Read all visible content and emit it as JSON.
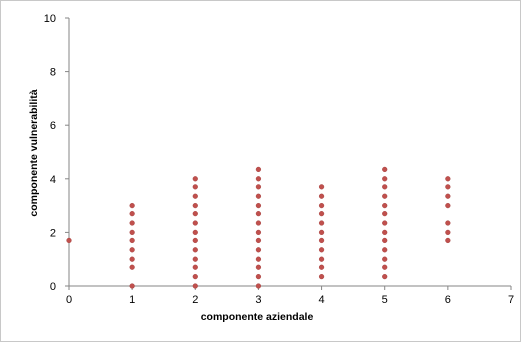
{
  "chart_data": {
    "type": "scatter",
    "title": "",
    "xlabel": "componente aziendale",
    "ylabel": "componente vulnerabilità",
    "xlim": [
      0,
      7
    ],
    "ylim": [
      0,
      10
    ],
    "x_ticks": [
      "0",
      "1",
      "2",
      "3",
      "4",
      "5",
      "6",
      "7"
    ],
    "y_ticks": [
      "0",
      "2",
      "4",
      "6",
      "8",
      "10"
    ],
    "grid": false,
    "legend": "none",
    "marker_color": "#C0504D",
    "axis_color": "#868686",
    "series": [
      {
        "points": [
          [
            0,
            1.7
          ],
          [
            1,
            0
          ],
          [
            1,
            0.7
          ],
          [
            1,
            1
          ],
          [
            1,
            1.35
          ],
          [
            1,
            1.7
          ],
          [
            1,
            2
          ],
          [
            1,
            2.35
          ],
          [
            1,
            2.7
          ],
          [
            1,
            3
          ],
          [
            2,
            0
          ],
          [
            2,
            0.35
          ],
          [
            2,
            0.7
          ],
          [
            2,
            1
          ],
          [
            2,
            1.35
          ],
          [
            2,
            1.7
          ],
          [
            2,
            2
          ],
          [
            2,
            2.35
          ],
          [
            2,
            2.7
          ],
          [
            2,
            3
          ],
          [
            2,
            3.35
          ],
          [
            2,
            3.7
          ],
          [
            2,
            4
          ],
          [
            3,
            0
          ],
          [
            3,
            0.35
          ],
          [
            3,
            0.7
          ],
          [
            3,
            1
          ],
          [
            3,
            1.35
          ],
          [
            3,
            1.7
          ],
          [
            3,
            2
          ],
          [
            3,
            2.35
          ],
          [
            3,
            2.7
          ],
          [
            3,
            3
          ],
          [
            3,
            3.35
          ],
          [
            3,
            3.7
          ],
          [
            3,
            4
          ],
          [
            3,
            4.35
          ],
          [
            4,
            0.35
          ],
          [
            4,
            0.7
          ],
          [
            4,
            1
          ],
          [
            4,
            1.35
          ],
          [
            4,
            1.7
          ],
          [
            4,
            2
          ],
          [
            4,
            2.35
          ],
          [
            4,
            2.7
          ],
          [
            4,
            3
          ],
          [
            4,
            3.35
          ],
          [
            4,
            3.7
          ],
          [
            5,
            0.35
          ],
          [
            5,
            0.7
          ],
          [
            5,
            1
          ],
          [
            5,
            1.35
          ],
          [
            5,
            1.7
          ],
          [
            5,
            2
          ],
          [
            5,
            2.35
          ],
          [
            5,
            2.7
          ],
          [
            5,
            3
          ],
          [
            5,
            3.35
          ],
          [
            5,
            3.7
          ],
          [
            5,
            4
          ],
          [
            5,
            4.35
          ],
          [
            6,
            1.7
          ],
          [
            6,
            2
          ],
          [
            6,
            2.35
          ],
          [
            6,
            3
          ],
          [
            6,
            3.35
          ],
          [
            6,
            3.7
          ],
          [
            6,
            4
          ]
        ]
      }
    ]
  }
}
